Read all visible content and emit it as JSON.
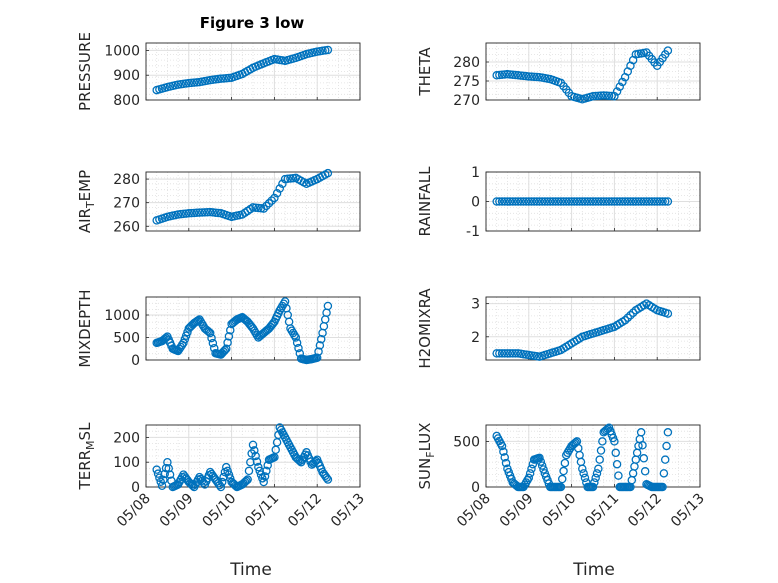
{
  "title": "Figure 3 low",
  "time_ticks": [
    "05/08",
    "05/09",
    "05/10",
    "05/11",
    "05/12",
    "05/13"
  ],
  "xlabel": "Time",
  "colors": {
    "marker": "#0072BD",
    "grid": "#dfdfdf",
    "axis": "#262626"
  },
  "chart_data": [
    {
      "type": "scatter",
      "ylabel": "PRESSURE",
      "ylim": [
        800,
        1030
      ],
      "yticks": [
        "800",
        "900",
        "1000"
      ],
      "xlim": [
        "05/08",
        "05/13"
      ],
      "grid": true,
      "x": [
        "05/08 06:00",
        "05/08 12:00",
        "05/08 18:00",
        "05/09 00:00",
        "05/09 06:00",
        "05/09 12:00",
        "05/09 18:00",
        "05/10 00:00",
        "05/10 06:00",
        "05/10 12:00",
        "05/10 18:00",
        "05/11 00:00",
        "05/11 06:00",
        "05/11 12:00",
        "05/11 18:00",
        "05/12 00:00",
        "05/12 06:00"
      ],
      "y": [
        840,
        852,
        862,
        868,
        872,
        880,
        886,
        890,
        905,
        930,
        948,
        965,
        958,
        970,
        985,
        995,
        1002
      ]
    },
    {
      "type": "scatter",
      "ylabel": "THETA",
      "ylim": [
        270,
        285
      ],
      "yticks": [
        "270",
        "275",
        "280"
      ],
      "xlim": [
        "05/08",
        "05/13"
      ],
      "grid": true,
      "x": [
        "05/08 06:00",
        "05/08 12:00",
        "05/08 18:00",
        "05/09 00:00",
        "05/09 06:00",
        "05/09 12:00",
        "05/09 18:00",
        "05/10 00:00",
        "05/10 06:00",
        "05/10 12:00",
        "05/10 18:00",
        "05/11 00:00",
        "05/11 06:00",
        "05/11 12:00",
        "05/11 18:00",
        "05/12 00:00",
        "05/12 06:00"
      ],
      "y": [
        276.5,
        276.8,
        276.5,
        276.2,
        276.0,
        275.5,
        274.5,
        271.0,
        270.2,
        271.0,
        271.2,
        271.0,
        276.0,
        282.0,
        282.5,
        279.0,
        283.0
      ]
    },
    {
      "type": "scatter",
      "ylabel": "AIR_TEMP",
      "ylim": [
        258,
        283
      ],
      "yticks": [
        "260",
        "270",
        "280"
      ],
      "xlim": [
        "05/08",
        "05/13"
      ],
      "grid": true,
      "x": [
        "05/08 06:00",
        "05/08 12:00",
        "05/08 18:00",
        "05/09 00:00",
        "05/09 06:00",
        "05/09 12:00",
        "05/09 18:00",
        "05/10 00:00",
        "05/10 06:00",
        "05/10 12:00",
        "05/10 18:00",
        "05/11 00:00",
        "05/11 06:00",
        "05/11 12:00",
        "05/11 18:00",
        "05/12 00:00",
        "05/12 06:00"
      ],
      "y": [
        262.5,
        264.0,
        265.0,
        265.5,
        265.8,
        266.0,
        265.5,
        264.0,
        265.0,
        268.0,
        267.5,
        272.0,
        280.0,
        280.5,
        278.0,
        280.0,
        282.5
      ]
    },
    {
      "type": "scatter",
      "ylabel": "RAINFALL",
      "ylim": [
        -1,
        1
      ],
      "yticks": [
        "-1",
        "0",
        "1"
      ],
      "xlim": [
        "05/08",
        "05/13"
      ],
      "grid": true,
      "x": [
        "05/08 06:00",
        "05/08 12:00",
        "05/08 18:00",
        "05/09 00:00",
        "05/09 06:00",
        "05/09 12:00",
        "05/09 18:00",
        "05/10 00:00",
        "05/10 06:00",
        "05/10 12:00",
        "05/10 18:00",
        "05/11 00:00",
        "05/11 06:00",
        "05/11 12:00",
        "05/11 18:00",
        "05/12 00:00",
        "05/12 06:00"
      ],
      "y": [
        0,
        0,
        0,
        0,
        0,
        0,
        0,
        0,
        0,
        0,
        0,
        0,
        0,
        0,
        0,
        0,
        0
      ]
    },
    {
      "type": "scatter",
      "ylabel": "MIXDEPTH",
      "ylim": [
        0,
        1400
      ],
      "yticks": [
        "0",
        "500",
        "1000"
      ],
      "xlim": [
        "05/08",
        "05/13"
      ],
      "grid": true,
      "x": [
        "05/08 06:00",
        "05/08 09:00",
        "05/08 12:00",
        "05/08 15:00",
        "05/08 18:00",
        "05/08 21:00",
        "05/09 00:00",
        "05/09 03:00",
        "05/09 06:00",
        "05/09 09:00",
        "05/09 12:00",
        "05/09 15:00",
        "05/09 18:00",
        "05/09 21:00",
        "05/10 00:00",
        "05/10 03:00",
        "05/10 06:00",
        "05/10 09:00",
        "05/10 12:00",
        "05/10 15:00",
        "05/10 18:00",
        "05/10 21:00",
        "05/11 00:00",
        "05/11 03:00",
        "05/11 06:00",
        "05/11 09:00",
        "05/11 12:00",
        "05/11 15:00",
        "05/11 18:00",
        "05/11 21:00",
        "05/12 00:00",
        "05/12 03:00",
        "05/12 06:00"
      ],
      "y": [
        380,
        420,
        520,
        250,
        200,
        380,
        700,
        820,
        900,
        700,
        600,
        150,
        120,
        250,
        800,
        900,
        950,
        850,
        700,
        500,
        600,
        700,
        850,
        1100,
        1300,
        700,
        500,
        30,
        0,
        20,
        50,
        600,
        1200
      ]
    },
    {
      "type": "scatter",
      "ylabel": "H2OMIXRA",
      "ylim": [
        1.3,
        3.2
      ],
      "yticks": [
        "2",
        "3"
      ],
      "xlim": [
        "05/08",
        "05/13"
      ],
      "grid": true,
      "x": [
        "05/08 06:00",
        "05/08 12:00",
        "05/08 18:00",
        "05/09 00:00",
        "05/09 06:00",
        "05/09 12:00",
        "05/09 18:00",
        "05/10 00:00",
        "05/10 06:00",
        "05/10 12:00",
        "05/10 18:00",
        "05/11 00:00",
        "05/11 06:00",
        "05/11 12:00",
        "05/11 18:00",
        "05/12 00:00",
        "05/12 06:00"
      ],
      "y": [
        1.5,
        1.5,
        1.5,
        1.45,
        1.4,
        1.5,
        1.6,
        1.8,
        2.0,
        2.1,
        2.2,
        2.3,
        2.5,
        2.8,
        3.0,
        2.8,
        2.7
      ]
    },
    {
      "type": "scatter",
      "ylabel": "TERR_MSL",
      "ylim": [
        0,
        250
      ],
      "yticks": [
        "0",
        "100",
        "200"
      ],
      "xlim": [
        "05/08",
        "05/13"
      ],
      "grid": true,
      "x": [
        "05/08 06:00",
        "05/08 09:00",
        "05/08 12:00",
        "05/08 15:00",
        "05/08 18:00",
        "05/08 21:00",
        "05/09 00:00",
        "05/09 03:00",
        "05/09 06:00",
        "05/09 09:00",
        "05/09 12:00",
        "05/09 15:00",
        "05/09 18:00",
        "05/09 21:00",
        "05/10 00:00",
        "05/10 03:00",
        "05/10 06:00",
        "05/10 09:00",
        "05/10 12:00",
        "05/10 15:00",
        "05/10 18:00",
        "05/10 21:00",
        "05/11 00:00",
        "05/11 03:00",
        "05/11 06:00",
        "05/11 09:00",
        "05/11 12:00",
        "05/11 15:00",
        "05/11 18:00",
        "05/11 21:00",
        "05/12 00:00",
        "05/12 03:00",
        "05/12 06:00"
      ],
      "y": [
        70,
        5,
        100,
        0,
        10,
        50,
        20,
        0,
        40,
        10,
        60,
        30,
        0,
        80,
        20,
        0,
        10,
        30,
        170,
        80,
        20,
        110,
        120,
        240,
        200,
        160,
        120,
        100,
        140,
        90,
        110,
        60,
        30
      ]
    },
    {
      "type": "scatter",
      "ylabel": "SUN_FLUX",
      "ylim": [
        0,
        680
      ],
      "yticks": [
        "0",
        "500"
      ],
      "xlim": [
        "05/08",
        "05/13"
      ],
      "grid": true,
      "x": [
        "05/08 06:00",
        "05/08 09:00",
        "05/08 12:00",
        "05/08 15:00",
        "05/08 18:00",
        "05/08 21:00",
        "05/09 00:00",
        "05/09 03:00",
        "05/09 06:00",
        "05/09 09:00",
        "05/09 12:00",
        "05/09 15:00",
        "05/09 18:00",
        "05/09 21:00",
        "05/10 00:00",
        "05/10 03:00",
        "05/10 06:00",
        "05/10 09:00",
        "05/10 12:00",
        "05/10 15:00",
        "05/10 18:00",
        "05/10 21:00",
        "05/11 00:00",
        "05/11 03:00",
        "05/11 06:00",
        "05/11 09:00",
        "05/11 12:00",
        "05/11 15:00",
        "05/11 18:00",
        "05/11 21:00",
        "05/12 00:00",
        "05/12 03:00",
        "05/12 06:00"
      ],
      "y": [
        560,
        450,
        200,
        50,
        0,
        0,
        100,
        300,
        320,
        150,
        0,
        0,
        0,
        350,
        450,
        500,
        200,
        0,
        0,
        200,
        600,
        650,
        500,
        0,
        0,
        0,
        300,
        600,
        30,
        0,
        0,
        0,
        600
      ]
    }
  ]
}
